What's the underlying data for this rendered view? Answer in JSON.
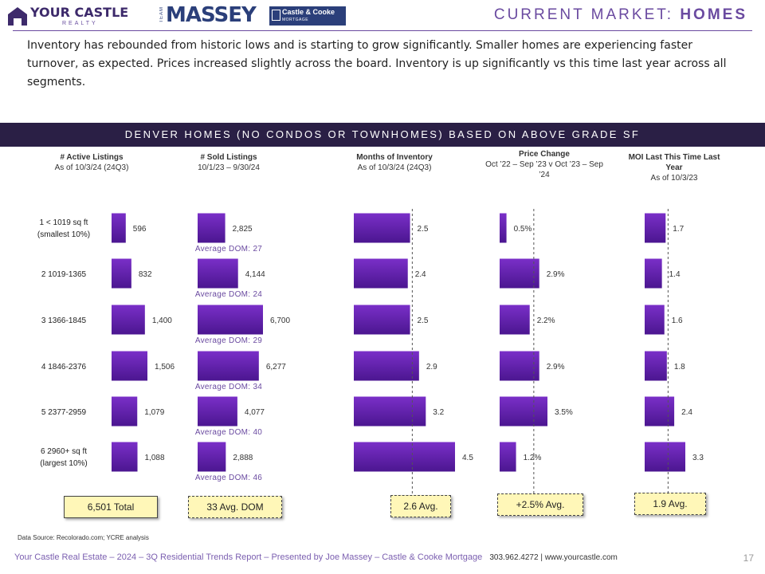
{
  "header": {
    "logo_name": "YOUR CASTLE",
    "logo_sub": "REALTY",
    "team_label": "TEAM",
    "team_name": "MASSEY",
    "cc_line1": "Castle & Cooke",
    "cc_line2": "MORTGAGE",
    "title_light": "CURRENT MARKET: ",
    "title_bold": "HOMES"
  },
  "intro": "Inventory has rebounded from historic lows and is starting to grow significantly. Smaller homes are experiencing faster turnover, as expected. Prices increased slightly across the board. Inventory is up significantly vs this time last year across all segments.",
  "band_title": "DENVER HOMES (NO CONDOS OR TOWNHOMES) BASED ON ABOVE GRADE SF",
  "row_labels": [
    [
      "1 < 1019 sq ft",
      "(smallest 10%)"
    ],
    [
      "2 1019-1365"
    ],
    [
      "3 1366-1845"
    ],
    [
      "4 1846-2376"
    ],
    [
      "5 2377-2959"
    ],
    [
      "6 2960+ sq ft",
      "(largest 10%)"
    ]
  ],
  "colors": {
    "bar": "#7a2fc8",
    "bar_dark": "#4b1690",
    "accent": "#6a4aa0",
    "band": "#2a1f45",
    "box": "#fff7b8"
  },
  "chart_data": [
    {
      "type": "bar",
      "orientation": "horizontal",
      "title": "# Active Listings",
      "subtitle": "As of 10/3/24 (24Q3)",
      "categories": [
        "1 < 1019 sq ft (smallest 10%)",
        "2 1019-1365",
        "3 1366-1845",
        "4 1846-2376",
        "5 2377-2959",
        "6 2960+ sq ft (largest 10%)"
      ],
      "values": [
        596,
        832,
        1400,
        1506,
        1079,
        1088
      ],
      "value_labels": [
        "596",
        "832",
        "1,400",
        "1,506",
        "1,079",
        "1,088"
      ],
      "xlim": [
        0,
        1506
      ],
      "summary": "6,501 Total"
    },
    {
      "type": "bar",
      "orientation": "horizontal",
      "title": "# Sold Listings",
      "subtitle": "10/1/23 – 9/30/24",
      "categories": [
        "1 < 1019 sq ft (smallest 10%)",
        "2 1019-1365",
        "3 1366-1845",
        "4 1846-2376",
        "5 2377-2959",
        "6 2960+ sq ft (largest 10%)"
      ],
      "values": [
        2825,
        4144,
        6700,
        6277,
        4077,
        2888
      ],
      "value_labels": [
        "2,825",
        "4,144",
        "6,700",
        "6,277",
        "4,077",
        "2,888"
      ],
      "annotations": [
        "Average DOM: 27",
        "Average DOM: 24",
        "Average DOM: 29",
        "Average DOM: 34",
        "Average DOM: 40",
        "Average DOM: 46"
      ],
      "xlim": [
        0,
        6700
      ],
      "summary": "33 Avg. DOM"
    },
    {
      "type": "bar",
      "orientation": "horizontal",
      "title": "Months of Inventory",
      "subtitle": "As of 10/3/24 (24Q3)",
      "categories": [
        "1 < 1019 sq ft (smallest 10%)",
        "2 1019-1365",
        "3 1366-1845",
        "4 1846-2376",
        "5 2377-2959",
        "6 2960+ sq ft (largest 10%)"
      ],
      "values": [
        2.5,
        2.4,
        2.5,
        2.9,
        3.2,
        4.5
      ],
      "value_labels": [
        "2.5",
        "2.4",
        "2.5",
        "2.9",
        "3.2",
        "4.5"
      ],
      "reference_line": 2.6,
      "xlim": [
        0,
        4.5
      ],
      "summary": "2.6 Avg."
    },
    {
      "type": "bar",
      "orientation": "horizontal",
      "title": "Price Change",
      "subtitle": "Oct ’22 – Sep ’23 v Oct ’23 – Sep ’24",
      "categories": [
        "1 < 1019 sq ft (smallest 10%)",
        "2 1019-1365",
        "3 1366-1845",
        "4 1846-2376",
        "5 2377-2959",
        "6 2960+ sq ft (largest 10%)"
      ],
      "values": [
        0.5,
        2.9,
        2.2,
        2.9,
        3.5,
        1.2
      ],
      "value_labels": [
        "0.5%",
        "2.9%",
        "2.2%",
        "2.9%",
        "3.5%",
        "1.2%"
      ],
      "reference_line": 2.5,
      "xlim": [
        0,
        3.5
      ],
      "summary": "+2.5% Avg."
    },
    {
      "type": "bar",
      "orientation": "horizontal",
      "title": "MOI Last This Time Last Year",
      "subtitle": "As of 10/3/23",
      "categories": [
        "1 < 1019 sq ft (smallest 10%)",
        "2 1019-1365",
        "3 1366-1845",
        "4 1846-2376",
        "5 2377-2959",
        "6 2960+ sq ft (largest 10%)"
      ],
      "values": [
        1.7,
        1.4,
        1.6,
        1.8,
        2.4,
        3.3
      ],
      "value_labels": [
        "1.7",
        "1.4",
        "1.6",
        "1.8",
        "2.4",
        "3.3"
      ],
      "reference_line": 1.9,
      "xlim": [
        0,
        3.3
      ],
      "summary": "1.9 Avg."
    }
  ],
  "source": "Data Source: Recolorado.com; YCRE analysis",
  "footer": {
    "text": "Your Castle Real Estate – 2024 – 3Q Residential Trends Report – Presented by Joe Massey – Castle & Cooke Mortgage",
    "phone_web": "303.962.4272 | www.yourcastle.com",
    "page": "17"
  }
}
